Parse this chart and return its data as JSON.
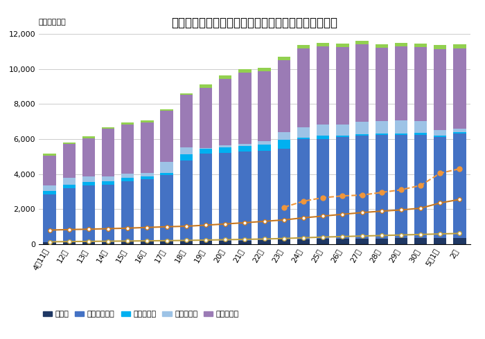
{
  "title": "【日本国内における新型コロナウイルスの感染者数】",
  "ylabel": "（単位：人）",
  "xlabels": [
    "4月11日",
    "12日",
    "13日",
    "14日",
    "15日",
    "16日",
    "17日",
    "18日",
    "19日",
    "20日",
    "21日",
    "22日",
    "23日",
    "24日",
    "25日",
    "26日",
    "27日",
    "28日",
    "29日",
    "30日",
    "5月1日",
    "2日"
  ],
  "ylim": [
    0,
    12000
  ],
  "yticks": [
    0,
    2000,
    4000,
    6000,
    8000,
    10000,
    12000
  ],
  "bar_series": {
    "重症者": [
      100,
      100,
      100,
      130,
      140,
      150,
      160,
      170,
      180,
      190,
      200,
      220,
      260,
      280,
      290,
      300,
      310,
      320,
      330,
      340,
      350,
      360
    ],
    "軽症・中等症": [
      2750,
      3100,
      3250,
      3250,
      3450,
      3550,
      3800,
      4600,
      5000,
      5000,
      5100,
      5100,
      5200,
      5700,
      5700,
      5800,
      5900,
      5900,
      5900,
      5900,
      5750,
      5950
    ],
    "入院待機中": [
      200,
      200,
      200,
      200,
      200,
      150,
      100,
      350,
      250,
      350,
      300,
      350,
      500,
      100,
      200,
      80,
      80,
      100,
      100,
      100,
      100,
      80
    ],
    "状態確認中": [
      300,
      400,
      300,
      300,
      250,
      200,
      650,
      400,
      50,
      100,
      100,
      200,
      450,
      600,
      650,
      650,
      700,
      700,
      750,
      700,
      300,
      200
    ],
    "症状確認中": [
      1700,
      1900,
      2200,
      2700,
      2800,
      2900,
      2900,
      3000,
      3450,
      3800,
      4100,
      4000,
      4100,
      4500,
      4450,
      4400,
      4400,
      4200,
      4200,
      4200,
      4650,
      4600
    ],
    "空港検疫": [
      100,
      100,
      100,
      100,
      100,
      100,
      100,
      100,
      200,
      200,
      200,
      200,
      200,
      200,
      200,
      200,
      200,
      200,
      200,
      200,
      200,
      200
    ]
  },
  "line_series": {
    "死者": [
      130,
      145,
      155,
      165,
      175,
      185,
      195,
      210,
      230,
      250,
      270,
      290,
      320,
      360,
      400,
      430,
      460,
      490,
      520,
      550,
      580,
      610
    ],
    "退院（暫定値）": [
      null,
      null,
      null,
      null,
      null,
      null,
      null,
      null,
      null,
      null,
      null,
      null,
      2100,
      2450,
      2650,
      2750,
      2800,
      2950,
      3100,
      3350,
      4050,
      4300
    ],
    "退院（確認値）": [
      800,
      830,
      850,
      880,
      910,
      950,
      990,
      1020,
      1080,
      1150,
      1220,
      1300,
      1380,
      1500,
      1600,
      1700,
      1800,
      1880,
      1950,
      2050,
      2350,
      2550
    ]
  },
  "bar_colors": {
    "重症者": "#1f3864",
    "軽症・中等症": "#4472c4",
    "入院待機中": "#00b0f0",
    "状態確認中": "#9dc3e6",
    "症状確認中": "#9b7bb5",
    "空港検疫": "#92d050"
  },
  "line_styles": {
    "死者": {
      "color": "#bfa040",
      "linestyle": "-",
      "marker": "o",
      "markersize": 4,
      "linewidth": 1.5,
      "markerfacecolor": "white"
    },
    "退院（暫定値）": {
      "color": "#f0963a",
      "linestyle": "--",
      "marker": "o",
      "markersize": 5,
      "linewidth": 1.5,
      "markerfacecolor": "#f0963a"
    },
    "退院（確認値）": {
      "color": "#c87820",
      "linestyle": "-",
      "marker": "o",
      "markersize": 4,
      "linewidth": 1.5,
      "markerfacecolor": "white"
    }
  },
  "background_color": "#ffffff",
  "title_fontsize": 12,
  "axis_fontsize": 8,
  "label_fontsize": 8
}
